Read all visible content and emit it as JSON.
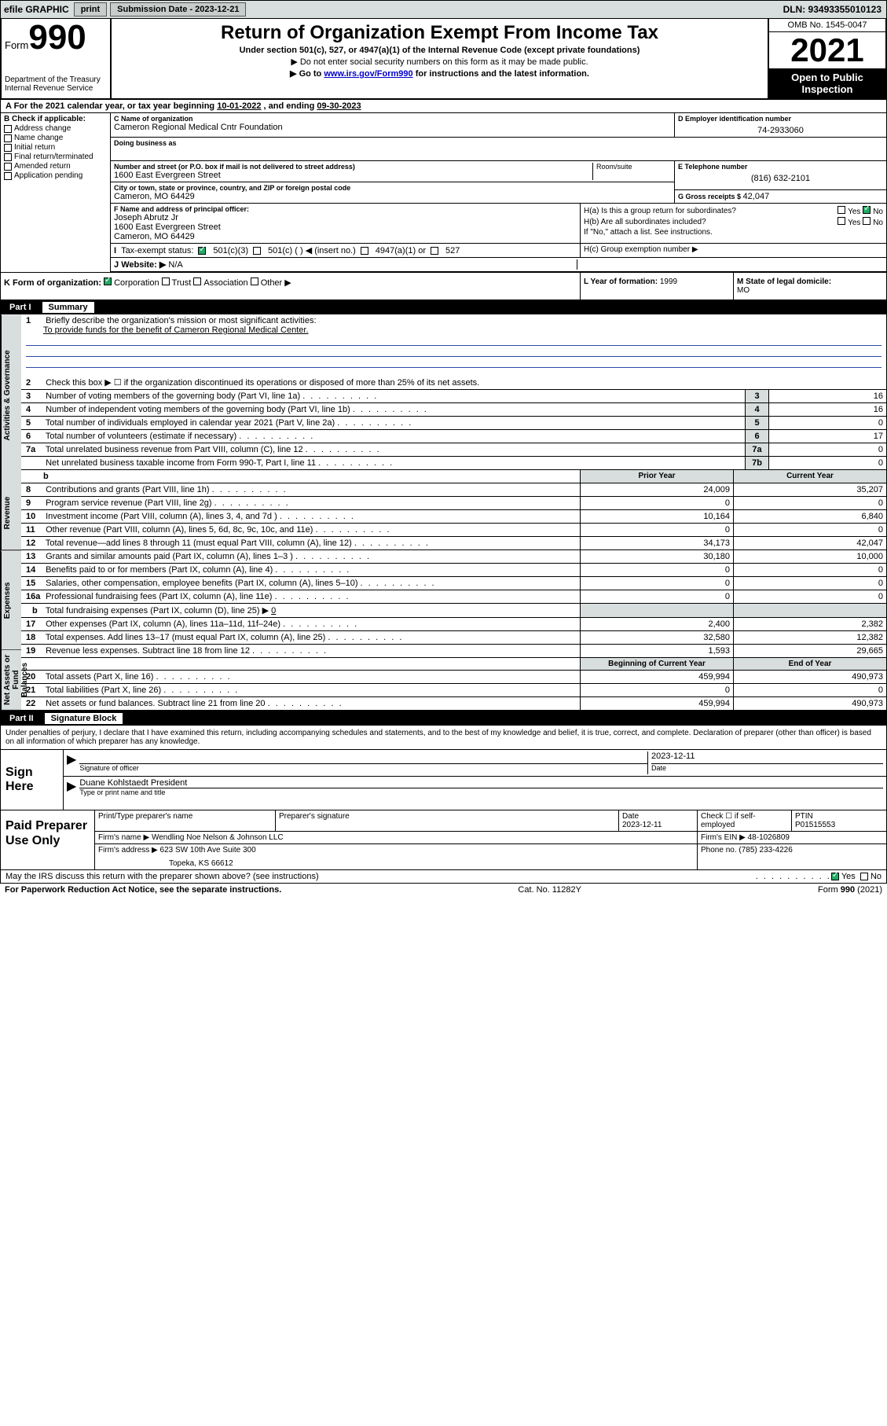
{
  "topbar": {
    "efile": "efile GRAPHIC",
    "print": "print",
    "sub_label": "Submission Date - ",
    "sub_date": "2023-12-21",
    "dln": "DLN: 93493355010123"
  },
  "header": {
    "form_word": "Form",
    "form_num": "990",
    "dept": "Department of the Treasury\nInternal Revenue Service",
    "title": "Return of Organization Exempt From Income Tax",
    "subtitle": "Under section 501(c), 527, or 4947(a)(1) of the Internal Revenue Code (except private foundations)",
    "note1": "▶ Do not enter social security numbers on this form as it may be made public.",
    "note2_pre": "▶ Go to ",
    "note2_link": "www.irs.gov/Form990",
    "note2_post": " for instructions and the latest information.",
    "omb": "OMB No. 1545-0047",
    "year": "2021",
    "open": "Open to Public Inspection"
  },
  "lineA": {
    "text_pre": "A For the 2021 calendar year, or tax year beginning ",
    "begin": "10-01-2022",
    "mid": " , and ending ",
    "end": "09-30-2023"
  },
  "sectionB": {
    "b_label": "B Check if applicable:",
    "checks": [
      "Address change",
      "Name change",
      "Initial return",
      "Final return/terminated",
      "Amended return",
      "Application pending"
    ],
    "c_label": "C Name of organization",
    "org_name": "Cameron Regional Medical Cntr Foundation",
    "dba_label": "Doing business as",
    "street_label": "Number and street (or P.O. box if mail is not delivered to street address)",
    "room_label": "Room/suite",
    "street": "1600 East Evergreen Street",
    "city_label": "City or town, state or province, country, and ZIP or foreign postal code",
    "city": "Cameron, MO  64429",
    "d_label": "D Employer identification number",
    "ein": "74-2933060",
    "e_label": "E Telephone number",
    "phone": "(816) 632-2101",
    "g_label": "G Gross receipts $ ",
    "gross": "42,047",
    "f_label": "F Name and address of principal officer:",
    "officer_name": "Joseph Abrutz Jr",
    "officer_addr1": "1600 East Evergreen Street",
    "officer_addr2": "Cameron, MO  64429",
    "ha_label": "H(a) Is this a group return for subordinates?",
    "hb_label": "H(b) Are all subordinates included?",
    "h_note": "If \"No,\" attach a list. See instructions.",
    "hc_label": "H(c) Group exemption number ▶",
    "yes": "Yes",
    "no": "No",
    "i_label": "I",
    "tax_exempt": "Tax-exempt status:",
    "s501c3": "501(c)(3)",
    "s501c": "501(c) (  ) ◀ (insert no.)",
    "s4947": "4947(a)(1) or",
    "s527": "527",
    "j_label": "J",
    "website_label": "Website: ▶",
    "website": "N/A",
    "k_label": "K Form of organization:",
    "k_corp": "Corporation",
    "k_trust": "Trust",
    "k_assoc": "Association",
    "k_other": "Other ▶",
    "l_label": "L Year of formation: ",
    "l_val": "1999",
    "m_label": "M State of legal domicile:",
    "m_val": "MO"
  },
  "part1": {
    "part": "Part I",
    "title": "Summary",
    "tabs": [
      "Activities & Governance",
      "Revenue",
      "Expenses",
      "Net Assets or Fund Balances"
    ],
    "q1_label": "1",
    "q1_text": "Briefly describe the organization's mission or most significant activities:",
    "q1_answer": "To provide funds for the benefit of Cameron Regional Medical Center.",
    "q2_label": "2",
    "q2_text": "Check this box ▶ ☐ if the organization discontinued its operations or disposed of more than 25% of its net assets.",
    "rows_single": [
      {
        "n": "3",
        "text": "Number of voting members of the governing body (Part VI, line 1a)",
        "box": "3",
        "val": "16"
      },
      {
        "n": "4",
        "text": "Number of independent voting members of the governing body (Part VI, line 1b)",
        "box": "4",
        "val": "16"
      },
      {
        "n": "5",
        "text": "Total number of individuals employed in calendar year 2021 (Part V, line 2a)",
        "box": "5",
        "val": "0"
      },
      {
        "n": "6",
        "text": "Total number of volunteers (estimate if necessary)",
        "box": "6",
        "val": "17"
      },
      {
        "n": "7a",
        "text": "Total unrelated business revenue from Part VIII, column (C), line 12",
        "box": "7a",
        "val": "0"
      },
      {
        "n": "",
        "text": "Net unrelated business taxable income from Form 990-T, Part I, line 11",
        "box": "7b",
        "val": "0"
      }
    ],
    "b_header": "b",
    "prior_label": "Prior Year",
    "current_label": "Current Year",
    "revenue_rows": [
      {
        "n": "8",
        "text": "Contributions and grants (Part VIII, line 1h)",
        "prior": "24,009",
        "curr": "35,207"
      },
      {
        "n": "9",
        "text": "Program service revenue (Part VIII, line 2g)",
        "prior": "0",
        "curr": "0"
      },
      {
        "n": "10",
        "text": "Investment income (Part VIII, column (A), lines 3, 4, and 7d )",
        "prior": "10,164",
        "curr": "6,840"
      },
      {
        "n": "11",
        "text": "Other revenue (Part VIII, column (A), lines 5, 6d, 8c, 9c, 10c, and 11e)",
        "prior": "0",
        "curr": "0"
      },
      {
        "n": "12",
        "text": "Total revenue—add lines 8 through 11 (must equal Part VIII, column (A), line 12)",
        "prior": "34,173",
        "curr": "42,047"
      }
    ],
    "expense_rows": [
      {
        "n": "13",
        "text": "Grants and similar amounts paid (Part IX, column (A), lines 1–3 )",
        "prior": "30,180",
        "curr": "10,000"
      },
      {
        "n": "14",
        "text": "Benefits paid to or for members (Part IX, column (A), line 4)",
        "prior": "0",
        "curr": "0"
      },
      {
        "n": "15",
        "text": "Salaries, other compensation, employee benefits (Part IX, column (A), lines 5–10)",
        "prior": "0",
        "curr": "0"
      },
      {
        "n": "16a",
        "text": "Professional fundraising fees (Part IX, column (A), line 11e)",
        "prior": "0",
        "curr": "0"
      }
    ],
    "row16b": {
      "n": "b",
      "text": "Total fundraising expenses (Part IX, column (D), line 25) ▶",
      "val": "0"
    },
    "expense_rows2": [
      {
        "n": "17",
        "text": "Other expenses (Part IX, column (A), lines 11a–11d, 11f–24e)",
        "prior": "2,400",
        "curr": "2,382"
      },
      {
        "n": "18",
        "text": "Total expenses. Add lines 13–17 (must equal Part IX, column (A), line 25)",
        "prior": "32,580",
        "curr": "12,382"
      },
      {
        "n": "19",
        "text": "Revenue less expenses. Subtract line 18 from line 12",
        "prior": "1,593",
        "curr": "29,665"
      }
    ],
    "begin_label": "Beginning of Current Year",
    "end_label": "End of Year",
    "net_rows": [
      {
        "n": "20",
        "text": "Total assets (Part X, line 16)",
        "prior": "459,994",
        "curr": "490,973"
      },
      {
        "n": "21",
        "text": "Total liabilities (Part X, line 26)",
        "prior": "0",
        "curr": "0"
      },
      {
        "n": "22",
        "text": "Net assets or fund balances. Subtract line 21 from line 20",
        "prior": "459,994",
        "curr": "490,973"
      }
    ]
  },
  "part2": {
    "part": "Part II",
    "title": "Signature Block",
    "intro": "Under penalties of perjury, I declare that I have examined this return, including accompanying schedules and statements, and to the best of my knowledge and belief, it is true, correct, and complete. Declaration of preparer (other than officer) is based on all information of which preparer has any knowledge.",
    "sign_here": "Sign Here",
    "sig_officer_label": "Signature of officer",
    "sig_date": "2023-12-11",
    "date_label": "Date",
    "officer_name": "Duane Kohlstaedt  President",
    "name_title_label": "Type or print name and title",
    "paid_label": "Paid Preparer Use Only",
    "prep_name_label": "Print/Type preparer's name",
    "prep_sig_label": "Preparer's signature",
    "prep_date_label": "Date",
    "prep_date": "2023-12-11",
    "check_if": "Check ☐ if self-employed",
    "ptin_label": "PTIN",
    "ptin": "P01515553",
    "firm_name_label": "Firm's name    ▶",
    "firm_name": "Wendling Noe Nelson & Johnson LLC",
    "firm_ein_label": "Firm's EIN ▶",
    "firm_ein": "48-1026809",
    "firm_addr_label": "Firm's address ▶",
    "firm_addr1": "623 SW 10th Ave Suite 300",
    "firm_addr2": "Topeka, KS  66612",
    "phone_label": "Phone no.",
    "phone": "(785) 233-4226",
    "discuss": "May the IRS discuss this return with the preparer shown above? (see instructions)",
    "footer_left": "For Paperwork Reduction Act Notice, see the separate instructions.",
    "footer_mid": "Cat. No. 11282Y",
    "footer_right": "Form 990 (2021)"
  }
}
